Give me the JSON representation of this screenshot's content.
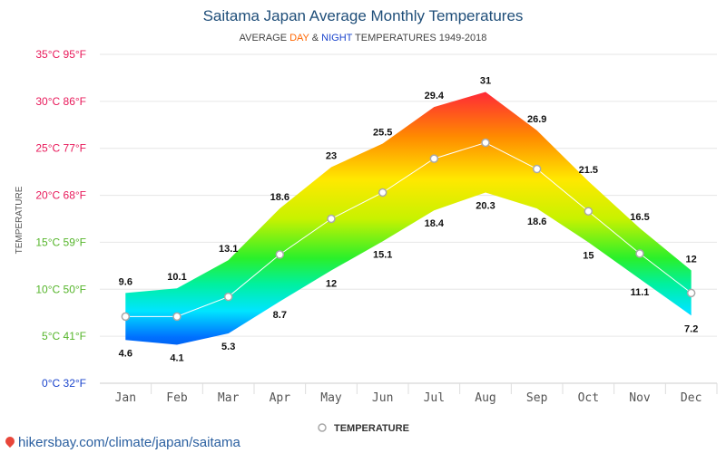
{
  "title": "Saitama Japan Average Monthly Temperatures",
  "subtitle": {
    "prefix": "AVERAGE ",
    "day": "DAY",
    "amp": " & ",
    "night": "NIGHT",
    "suffix": " TEMPERATURES 1949-2018"
  },
  "footer": "hikersbay.com/climate/japan/saitama",
  "colors": {
    "title": "#1f4e79",
    "day": "#ff6600",
    "night": "#1a44cc",
    "gridline": "#e6e6e6",
    "avg_line": "#ffffff",
    "marker_stroke": "#a8a8a8"
  },
  "icons": {
    "footer": "map-pin-icon",
    "legend": "hollow-circle-icon"
  },
  "chart_data": {
    "type": "area",
    "title": "Saitama Japan Average Monthly Temperatures",
    "ylabel": "TEMPERATURE",
    "ylim": [
      0,
      35
    ],
    "yticks": [
      {
        "value": 35,
        "label": "35°C 95°F",
        "color": "#e8195a"
      },
      {
        "value": 30,
        "label": "30°C 86°F",
        "color": "#e8195a"
      },
      {
        "value": 25,
        "label": "25°C 77°F",
        "color": "#e8195a"
      },
      {
        "value": 20,
        "label": "20°C 68°F",
        "color": "#e8195a"
      },
      {
        "value": 15,
        "label": "15°C 59°F",
        "color": "#55b52a"
      },
      {
        "value": 10,
        "label": "10°C 50°F",
        "color": "#55b52a"
      },
      {
        "value": 5,
        "label": "5°C 41°F",
        "color": "#55b52a"
      },
      {
        "value": 0,
        "label": "0°C 32°F",
        "color": "#1a44cc"
      }
    ],
    "categories": [
      "Jan",
      "Feb",
      "Mar",
      "Apr",
      "May",
      "Jun",
      "Jul",
      "Aug",
      "Sep",
      "Oct",
      "Nov",
      "Dec"
    ],
    "series": [
      {
        "name": "DAY",
        "values": [
          9.6,
          10.1,
          13.1,
          18.6,
          23,
          25.5,
          29.4,
          31,
          26.9,
          21.5,
          16.5,
          12
        ]
      },
      {
        "name": "NIGHT",
        "values": [
          4.6,
          4.1,
          5.3,
          8.7,
          12,
          15.1,
          18.4,
          20.3,
          18.6,
          15,
          11.1,
          7.2
        ]
      },
      {
        "name": "TEMPERATURE",
        "values": [
          7.1,
          7.1,
          9.2,
          13.7,
          17.5,
          20.3,
          23.9,
          25.6,
          22.8,
          18.3,
          13.8,
          9.6
        ]
      }
    ],
    "legend": {
      "label": "TEMPERATURE",
      "position": "bottom-center"
    },
    "grid": true
  }
}
